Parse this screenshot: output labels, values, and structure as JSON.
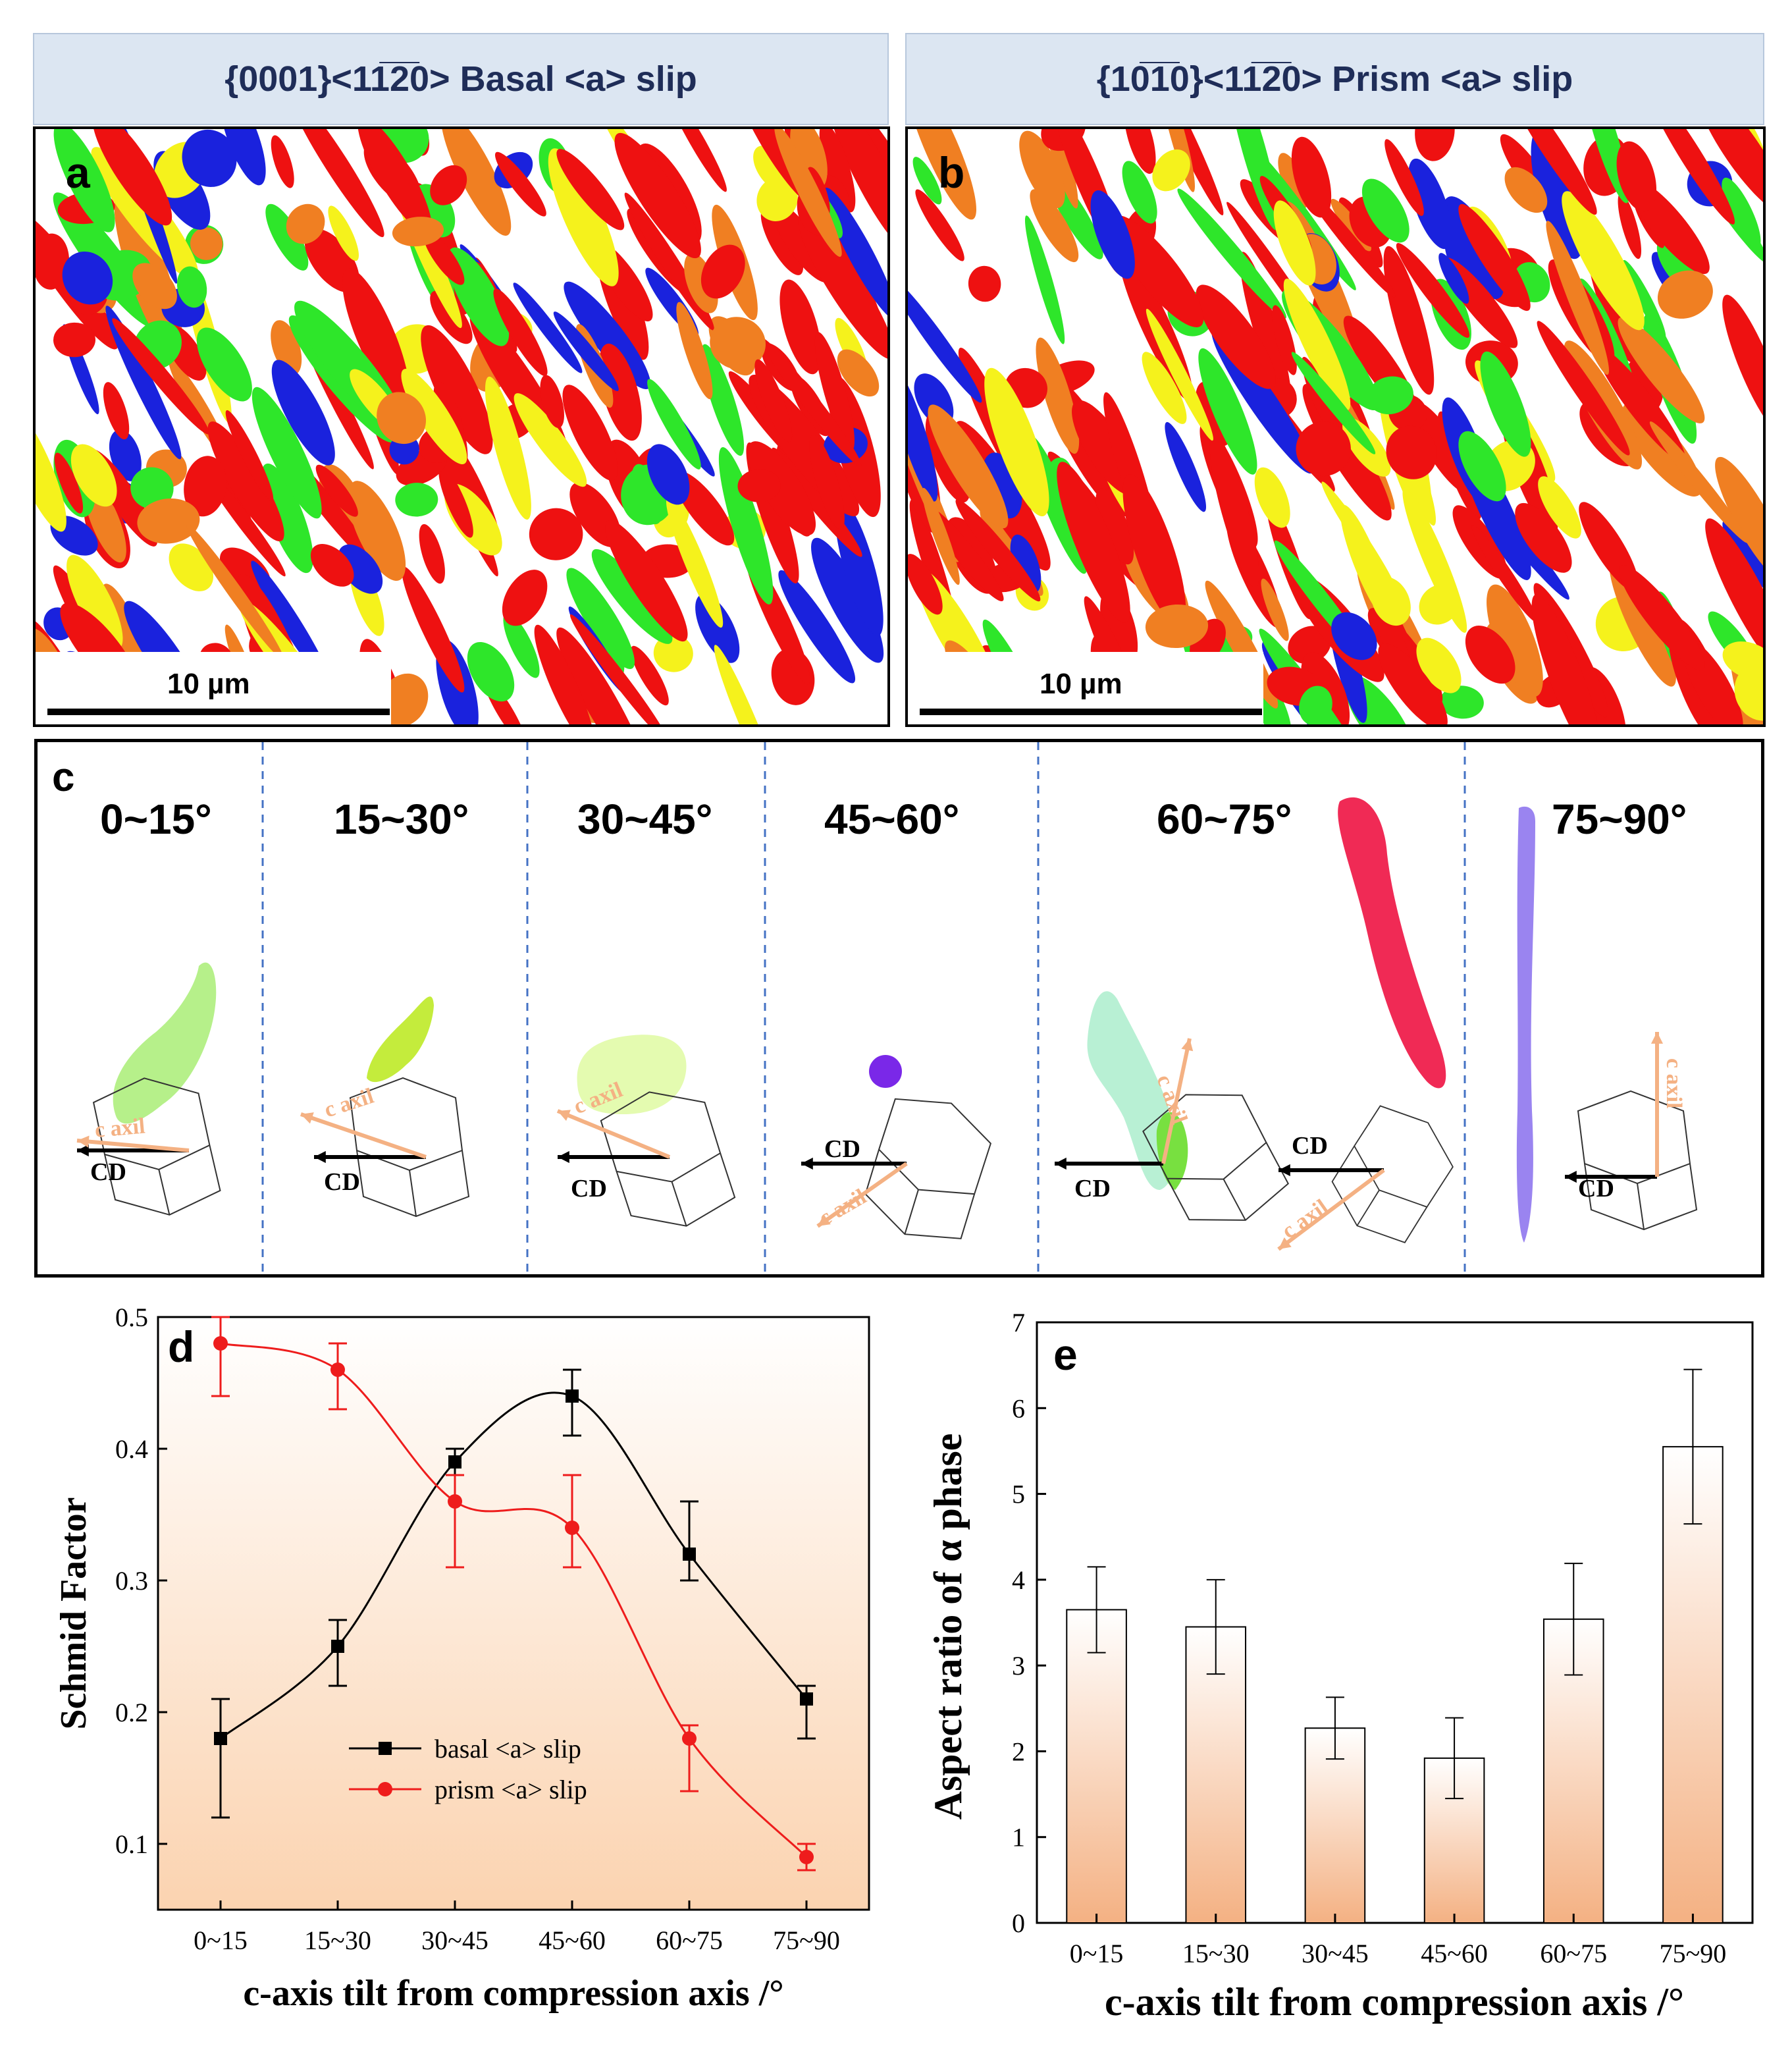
{
  "panel_a": {
    "header": "{0001}<11̅2̅0> Basal <a> slip",
    "letter": "a",
    "scale": "10 µm"
  },
  "panel_b": {
    "header": "{10̅1̅0}<11̅2̅0> Prism <a> slip",
    "letter": "b",
    "scale": "10 µm"
  },
  "panel_c": {
    "letter": "c",
    "bins": [
      "0~15°",
      "15~30°",
      "30~45°",
      "45~60°",
      "60~75°",
      "75~90°"
    ],
    "cd_label": "CD",
    "caxis_label": "c axil"
  },
  "colors": {
    "red": "#ee1111",
    "orange": "#f07f22",
    "yellow": "#f5f21c",
    "green": "#2ee62a",
    "blue": "#1a22dd",
    "peach": "#f4b183",
    "basal": "#000000",
    "prism": "#ee1c1c"
  },
  "chart_data": [
    {
      "panel": "d",
      "type": "line",
      "categories": [
        "0~15",
        "15~30",
        "30~45",
        "45~60",
        "60~75",
        "75~90"
      ],
      "series": [
        {
          "name": "basal <a> slip",
          "values": [
            0.18,
            0.25,
            0.39,
            0.44,
            0.32,
            0.21
          ],
          "err_low": [
            0.06,
            0.03,
            0.01,
            0.03,
            0.02,
            0.03
          ],
          "err_high": [
            0.03,
            0.02,
            0.01,
            0.02,
            0.04,
            0.01
          ]
        },
        {
          "name": "prism <a> slip",
          "values": [
            0.48,
            0.46,
            0.36,
            0.34,
            0.18,
            0.09
          ],
          "err_low": [
            0.04,
            0.03,
            0.05,
            0.03,
            0.04,
            0.01
          ],
          "err_high": [
            0.02,
            0.02,
            0.02,
            0.04,
            0.01,
            0.01
          ]
        }
      ],
      "ylim": [
        0.05,
        0.5
      ],
      "yticks": [
        "0.1",
        "0.2",
        "0.3",
        "0.4",
        "0.5"
      ],
      "xlabel": "c-axis tilt from compression axis /°",
      "ylabel": "Schmid Factor",
      "legend": "center"
    },
    {
      "panel": "e",
      "type": "bar",
      "categories": [
        "0~15",
        "15~30",
        "30~45",
        "45~60",
        "60~75",
        "75~90"
      ],
      "values": [
        3.65,
        3.45,
        2.27,
        1.92,
        3.54,
        5.55
      ],
      "err": [
        0.5,
        0.55,
        0.36,
        0.47,
        0.65,
        0.9
      ],
      "ylim": [
        0,
        7
      ],
      "yticks": [
        "0",
        "1",
        "2",
        "3",
        "4",
        "5",
        "6",
        "7"
      ],
      "xlabel": "c-axis tilt from compression axis /°",
      "ylabel": "Aspect ratio of α phase"
    }
  ],
  "chart_labels": {
    "d": "d",
    "e": "e"
  }
}
